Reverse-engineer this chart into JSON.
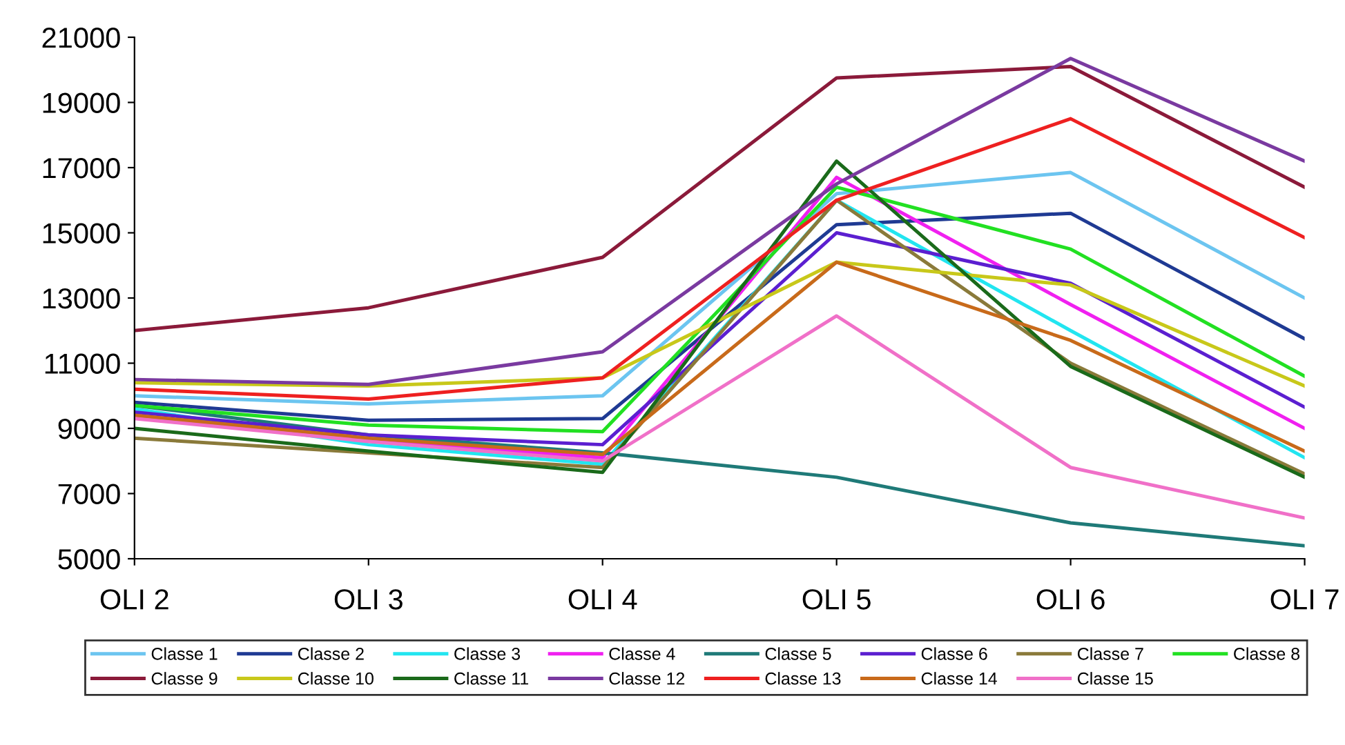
{
  "chart_data": {
    "type": "line",
    "categories": [
      "OLI 2",
      "OLI 3",
      "OLI 4",
      "OLI 5",
      "OLI 6",
      "OLI 7"
    ],
    "ylim": [
      5000,
      21000
    ],
    "yticks": [
      5000,
      7000,
      9000,
      11000,
      13000,
      15000,
      17000,
      19000,
      21000
    ],
    "grid": false,
    "legend": "bottom",
    "marker": "none",
    "line_style": "solid",
    "series": [
      {
        "name": "Classe 1",
        "color": "#6cc5f0",
        "values": [
          10000,
          9750,
          10000,
          16200,
          16850,
          13000
        ]
      },
      {
        "name": "Classe 2",
        "color": "#1f3a93",
        "values": [
          9800,
          9250,
          9300,
          15250,
          15600,
          11750
        ]
      },
      {
        "name": "Classe 3",
        "color": "#22e5f0",
        "values": [
          9600,
          8500,
          7900,
          16000,
          12000,
          8100
        ]
      },
      {
        "name": "Classe 4",
        "color": "#f020f0",
        "values": [
          9400,
          8650,
          8100,
          16700,
          12800,
          9000
        ]
      },
      {
        "name": "Classe 5",
        "color": "#1f7a78",
        "values": [
          9700,
          8800,
          8250,
          7500,
          6100,
          5400
        ]
      },
      {
        "name": "Classe 6",
        "color": "#5b1fd0",
        "values": [
          9500,
          8800,
          8500,
          15000,
          13450,
          9650
        ]
      },
      {
        "name": "Classe 7",
        "color": "#8a7a3a",
        "values": [
          8700,
          8250,
          7800,
          16000,
          11000,
          7600
        ]
      },
      {
        "name": "Classe 8",
        "color": "#22e022",
        "values": [
          9700,
          9100,
          8900,
          16400,
          14500,
          10600
        ]
      },
      {
        "name": "Classe 9",
        "color": "#8b1a3a",
        "values": [
          12000,
          12700,
          14250,
          19750,
          20100,
          16400
        ]
      },
      {
        "name": "Classe 10",
        "color": "#c8c81a",
        "values": [
          10400,
          10300,
          10550,
          14100,
          13400,
          10300
        ]
      },
      {
        "name": "Classe 11",
        "color": "#1a6a1a",
        "values": [
          9000,
          8300,
          7650,
          17200,
          10900,
          7500
        ]
      },
      {
        "name": "Classe 12",
        "color": "#7a3aa0",
        "values": [
          10500,
          10350,
          11350,
          16500,
          20350,
          17200
        ]
      },
      {
        "name": "Classe 13",
        "color": "#ee2020",
        "values": [
          10200,
          9900,
          10550,
          16000,
          18500,
          14850
        ]
      },
      {
        "name": "Classe 14",
        "color": "#c86a1a",
        "values": [
          9400,
          8700,
          8200,
          14100,
          11700,
          8300
        ]
      },
      {
        "name": "Classe 15",
        "color": "#f070c8",
        "values": [
          9300,
          8600,
          8000,
          12450,
          7800,
          6250
        ]
      }
    ]
  }
}
